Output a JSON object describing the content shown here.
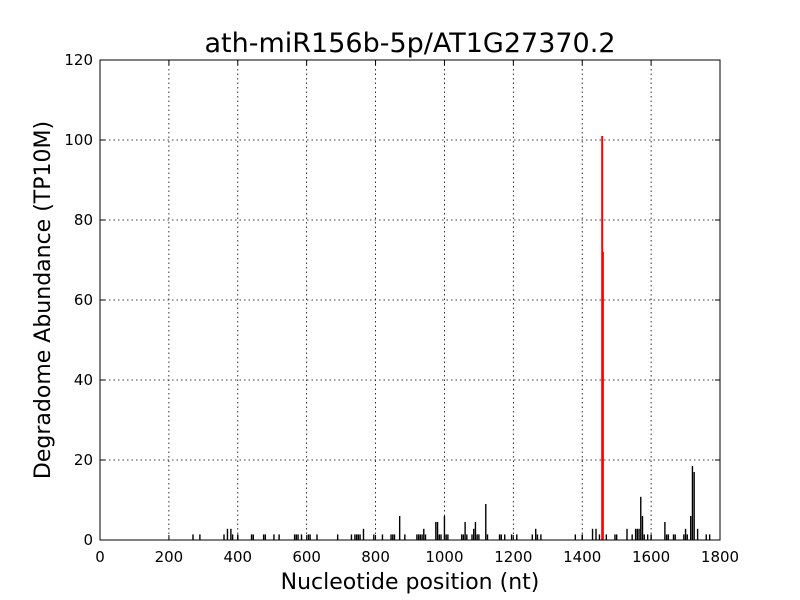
{
  "chart_data": {
    "type": "bar",
    "title": "ath-miR156b-5p/AT1G27370.2",
    "xlabel": "Nucleotide position (nt)",
    "ylabel": "Degradome Abundance (TP10M)",
    "xlim": [
      0,
      1800
    ],
    "ylim": [
      0,
      120
    ],
    "xticks": [
      0,
      200,
      400,
      600,
      800,
      1000,
      1200,
      1400,
      1600,
      1800
    ],
    "yticks": [
      0,
      20,
      40,
      60,
      80,
      100,
      120
    ],
    "grid": true,
    "colors": {
      "background": "#ffffff",
      "series": "#000000",
      "highlight": "#ff0000"
    },
    "series": [
      {
        "values": [
          [
            270,
            1.4
          ],
          [
            290,
            1.4
          ],
          [
            360,
            1.4
          ],
          [
            370,
            2.8
          ],
          [
            380,
            2.8
          ],
          [
            385,
            1.4
          ],
          [
            400,
            1.4
          ],
          [
            440,
            1.4
          ],
          [
            445,
            1.4
          ],
          [
            475,
            1.4
          ],
          [
            480,
            1.4
          ],
          [
            505,
            1.4
          ],
          [
            520,
            1.4
          ],
          [
            565,
            1.4
          ],
          [
            570,
            1.4
          ],
          [
            575,
            1.4
          ],
          [
            585,
            1.4
          ],
          [
            605,
            1.4
          ],
          [
            610,
            1.4
          ],
          [
            630,
            1.4
          ],
          [
            690,
            1.4
          ],
          [
            730,
            1.4
          ],
          [
            740,
            1.4
          ],
          [
            745,
            1.4
          ],
          [
            750,
            1.4
          ],
          [
            755,
            1.4
          ],
          [
            765,
            2.8
          ],
          [
            795,
            1.4
          ],
          [
            820,
            1.4
          ],
          [
            845,
            1.4
          ],
          [
            850,
            1.4
          ],
          [
            855,
            1.4
          ],
          [
            870,
            6.0
          ],
          [
            885,
            1.4
          ],
          [
            920,
            1.4
          ],
          [
            925,
            1.4
          ],
          [
            930,
            1.4
          ],
          [
            935,
            1.4
          ],
          [
            940,
            2.8
          ],
          [
            945,
            1.4
          ],
          [
            975,
            4.5
          ],
          [
            980,
            4.5
          ],
          [
            985,
            1.4
          ],
          [
            990,
            1.4
          ],
          [
            1000,
            6.0
          ],
          [
            1005,
            1.4
          ],
          [
            1010,
            1.4
          ],
          [
            1050,
            1.4
          ],
          [
            1055,
            1.4
          ],
          [
            1060,
            4.5
          ],
          [
            1065,
            1.4
          ],
          [
            1080,
            1.4
          ],
          [
            1085,
            2.8
          ],
          [
            1090,
            4.5
          ],
          [
            1095,
            1.4
          ],
          [
            1100,
            1.4
          ],
          [
            1120,
            9.0
          ],
          [
            1125,
            1.4
          ],
          [
            1160,
            1.4
          ],
          [
            1165,
            1.4
          ],
          [
            1175,
            1.4
          ],
          [
            1195,
            1.4
          ],
          [
            1210,
            1.4
          ],
          [
            1255,
            1.4
          ],
          [
            1265,
            2.8
          ],
          [
            1270,
            1.4
          ],
          [
            1280,
            1.4
          ],
          [
            1380,
            1.4
          ],
          [
            1400,
            1.4
          ],
          [
            1430,
            2.8
          ],
          [
            1440,
            2.8
          ],
          [
            1450,
            1.4
          ],
          [
            1470,
            1.4
          ],
          [
            1495,
            1.4
          ],
          [
            1500,
            1.4
          ],
          [
            1530,
            2.8
          ],
          [
            1545,
            1.4
          ],
          [
            1555,
            2.8
          ],
          [
            1560,
            2.8
          ],
          [
            1565,
            2.8
          ],
          [
            1570,
            10.8
          ],
          [
            1575,
            6.0
          ],
          [
            1580,
            1.4
          ],
          [
            1590,
            1.4
          ],
          [
            1600,
            1.4
          ],
          [
            1640,
            4.5
          ],
          [
            1645,
            1.4
          ],
          [
            1650,
            1.4
          ],
          [
            1665,
            1.4
          ],
          [
            1670,
            1.4
          ],
          [
            1695,
            1.4
          ],
          [
            1700,
            2.8
          ],
          [
            1705,
            1.4
          ],
          [
            1715,
            6.0
          ],
          [
            1720,
            18.5
          ],
          [
            1725,
            17.0
          ],
          [
            1735,
            2.8
          ],
          [
            1760,
            1.4
          ],
          [
            1770,
            1.4
          ]
        ]
      },
      {
        "values": [
          [
            1458,
            101
          ],
          [
            1460,
            72
          ]
        ]
      }
    ]
  }
}
